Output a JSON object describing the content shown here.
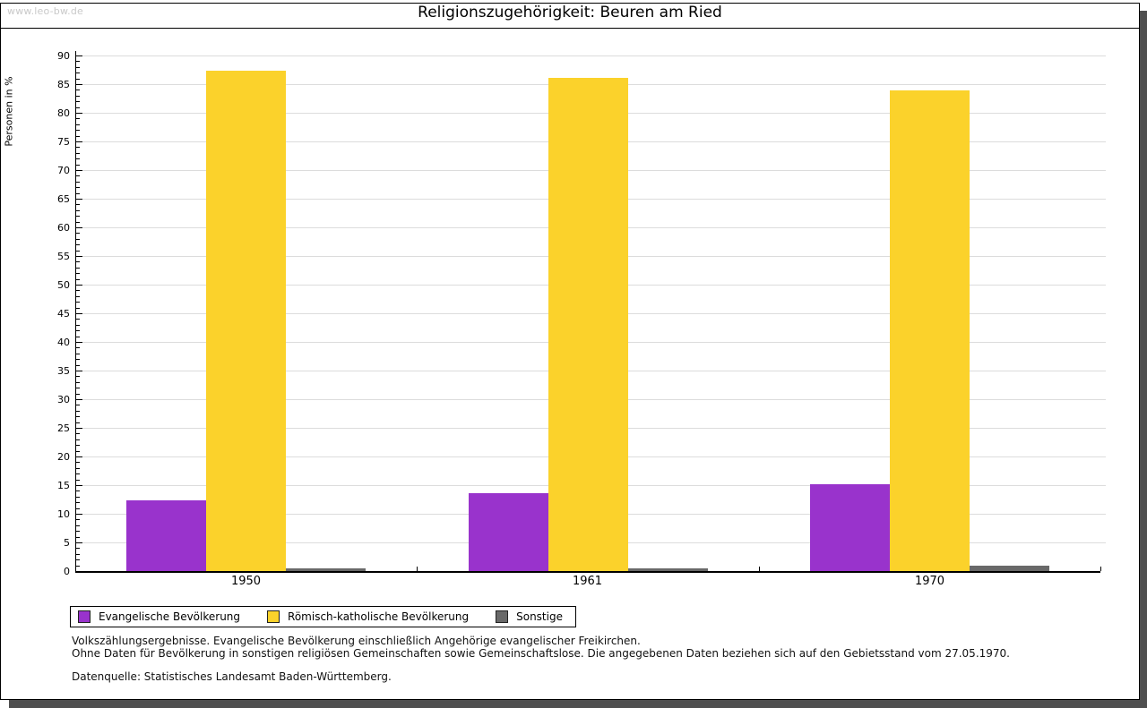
{
  "watermark": "www.leo-bw.de",
  "title": "Religionszugehörigkeit: Beuren am Ried",
  "chart_data": {
    "type": "bar",
    "title": "Religionszugehörigkeit: Beuren am Ried",
    "xlabel": "",
    "ylabel": "Personen in %",
    "ylim": [
      0,
      90
    ],
    "ytick_step": 5,
    "yminor_step": 1,
    "grid": true,
    "legend_position": "bottom-left",
    "categories": [
      "1950",
      "1961",
      "1970"
    ],
    "series": [
      {
        "name": "Evangelische Bevölkerung",
        "color": "#9933cc",
        "values": [
          12.4,
          13.6,
          15.2
        ]
      },
      {
        "name": "Römisch-katholische Bevölkerung",
        "color": "#fbd22b",
        "values": [
          87.3,
          86.1,
          83.9
        ]
      },
      {
        "name": "Sonstige",
        "color": "#696969",
        "values": [
          0.4,
          0.4,
          0.9
        ]
      }
    ]
  },
  "footer": {
    "line1": "Volkszählungsergebnisse. Evangelische Bevölkerung einschließlich Angehörige evangelischer Freikirchen.",
    "line2": "Ohne Daten für Bevölkerung in sonstigen religiösen Gemeinschaften sowie Gemeinschaftslose. Die angegebenen Daten beziehen sich auf den Gebietsstand vom 27.05.1970.",
    "source": "Datenquelle: Statistisches Landesamt Baden-Württemberg."
  },
  "colors": {
    "gridline": "#dcdcdc",
    "axis": "#000000",
    "shadow": "#4f4f4f",
    "watermark": "#c9c9c9"
  }
}
